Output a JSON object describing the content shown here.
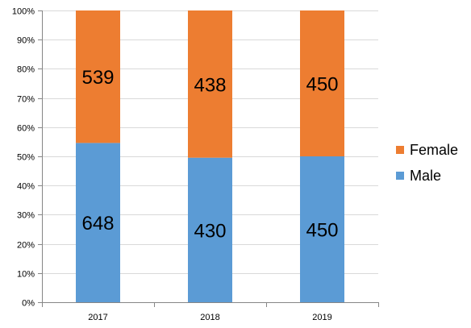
{
  "chart_data": {
    "type": "bar",
    "stacked": "percent",
    "categories": [
      "2017",
      "2018",
      "2019"
    ],
    "series": [
      {
        "name": "Male",
        "values": [
          648,
          430,
          450
        ],
        "color": "#5b9bd5"
      },
      {
        "name": "Female",
        "values": [
          539,
          438,
          450
        ],
        "color": "#ed7d31"
      }
    ],
    "y_ticks": [
      "0%",
      "10%",
      "20%",
      "30%",
      "40%",
      "50%",
      "60%",
      "70%",
      "80%",
      "90%",
      "100%"
    ],
    "ylim": [
      0,
      100
    ],
    "grid": true,
    "legend_position": "right",
    "title": "",
    "xlabel": "",
    "ylabel": ""
  }
}
